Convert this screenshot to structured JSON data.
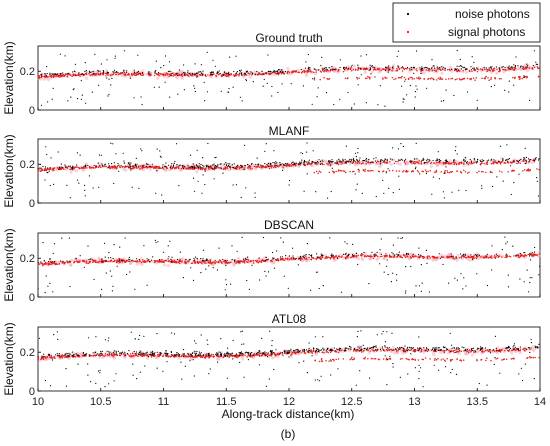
{
  "chart_data": [
    {
      "type": "scatter",
      "title": "Ground truth",
      "ylabel": "Elevation(km)",
      "xlim": [
        10,
        14
      ],
      "ylim": [
        0,
        0.33
      ],
      "y_ticks": [
        "0",
        "0.2"
      ],
      "signal": {
        "start": 0.17,
        "end": 0.22,
        "lower_band": true
      },
      "noise_ratio": 0.35
    },
    {
      "type": "scatter",
      "title": "MLANF",
      "ylabel": "Elevation(km)",
      "xlim": [
        10,
        14
      ],
      "ylim": [
        0,
        0.33
      ],
      "y_ticks": [
        "0",
        "0.2"
      ],
      "signal": {
        "start": 0.17,
        "end": 0.22,
        "lower_band": true
      },
      "noise_ratio": 0.45
    },
    {
      "type": "scatter",
      "title": "DBSCAN",
      "ylabel": "Elevation(km)",
      "xlim": [
        10,
        14
      ],
      "ylim": [
        0,
        0.33
      ],
      "y_ticks": [
        "0",
        "0.2"
      ],
      "signal": {
        "start": 0.17,
        "end": 0.22,
        "lower_band": false
      },
      "noise_ratio": 0.2
    },
    {
      "type": "scatter",
      "title": "ATL08",
      "ylabel": "Elevation(km)",
      "xlim": [
        10,
        14
      ],
      "ylim": [
        0,
        0.33
      ],
      "y_ticks": [
        "0",
        "0.2"
      ],
      "signal": {
        "start": 0.17,
        "end": 0.22,
        "lower_band": true
      },
      "noise_ratio": 0.55
    }
  ],
  "x_ticks": [
    "10",
    "10.5",
    "11",
    "11.5",
    "12",
    "12.5",
    "13",
    "13.5",
    "14"
  ],
  "xlabel": "Along-track distance(km)",
  "legend": {
    "placement": "top-right",
    "entries": [
      {
        "label": "noise photons",
        "color": "#000000"
      },
      {
        "label": "signal photons",
        "color": "#e8201c"
      }
    ]
  },
  "caption": "(b)",
  "colors": {
    "signal": "#e8201c",
    "signal_glow": "#f7a8b8",
    "noise": "#000000"
  }
}
